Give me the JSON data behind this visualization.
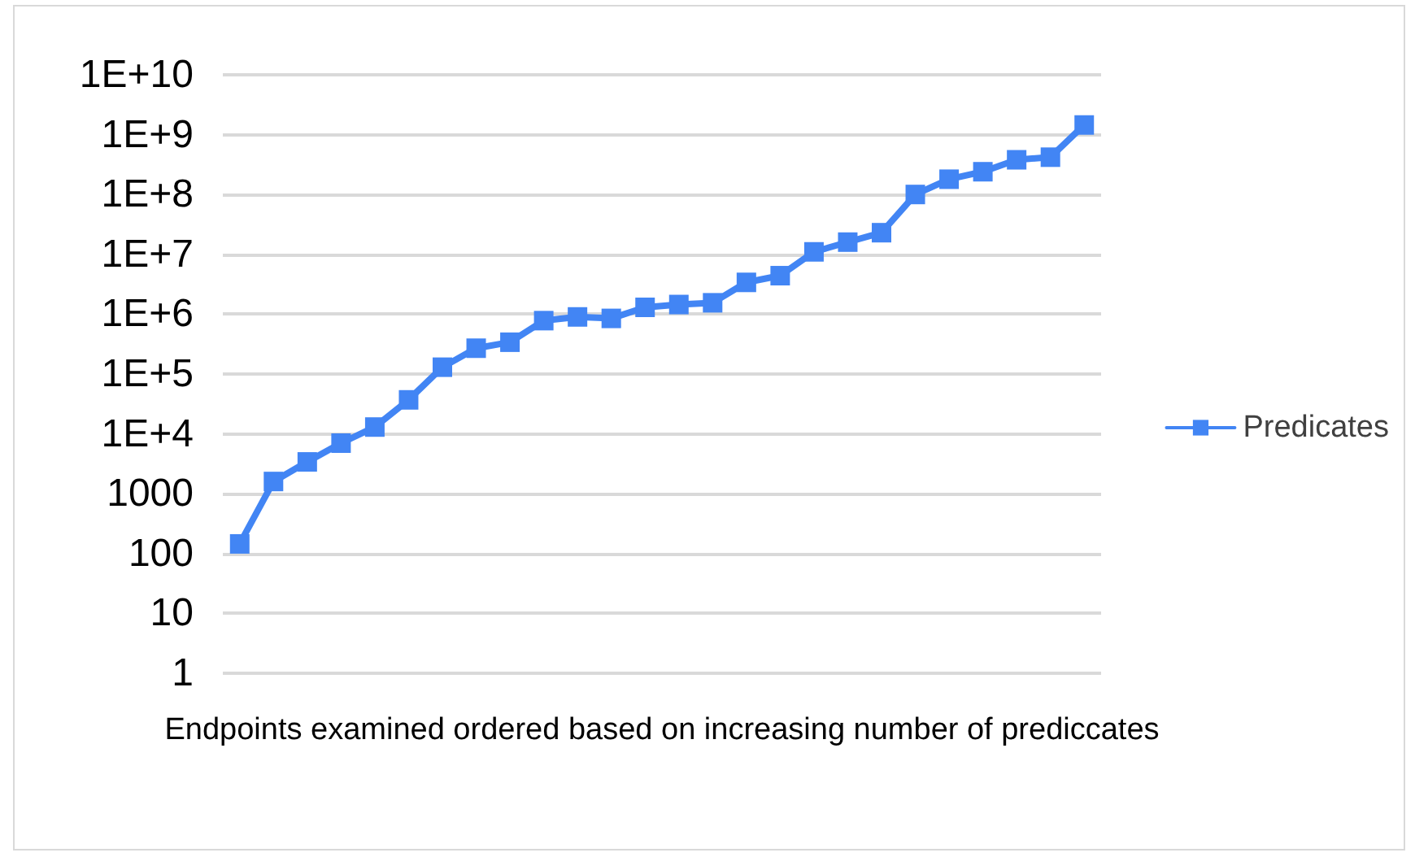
{
  "chart_data": {
    "type": "line",
    "xlabel": "Endpoints examined ordered based on increasing number of prediccates",
    "categories": [
      null,
      null,
      null,
      null,
      null,
      null,
      null,
      null,
      null,
      null,
      null,
      null,
      null,
      null,
      null,
      null,
      null,
      null,
      null,
      null,
      null,
      null,
      null,
      null,
      null,
      null
    ],
    "series": [
      {
        "name": "Predicates",
        "color": "#4285f4",
        "values": [
          145,
          1600,
          3400,
          7000,
          13000,
          37000,
          130000,
          270000,
          340000,
          780000,
          900000,
          850000,
          1300000,
          1450000,
          1550000,
          3400000,
          4400000,
          11000000,
          16000000,
          23000000,
          100000000,
          180000000,
          240000000,
          380000000,
          420000000,
          1450000000
        ]
      }
    ],
    "log": "y",
    "ylim": [
      1,
      10000000000
    ],
    "yticks": [
      1,
      10,
      100,
      1000,
      {
        "value": 10000,
        "label": "1E+4"
      },
      {
        "value": 100000,
        "label": "1E+5"
      },
      {
        "value": 1000000,
        "label": "1E+6"
      },
      {
        "value": 10000000,
        "label": "1E+7"
      },
      {
        "value": 100000000,
        "label": "1E+8"
      },
      {
        "value": 1000000000,
        "label": "1E+9"
      },
      {
        "value": 10000000000,
        "label": "1E+10"
      }
    ],
    "grid": "y",
    "legend": "right",
    "marker": "square",
    "line_style": "solid"
  }
}
